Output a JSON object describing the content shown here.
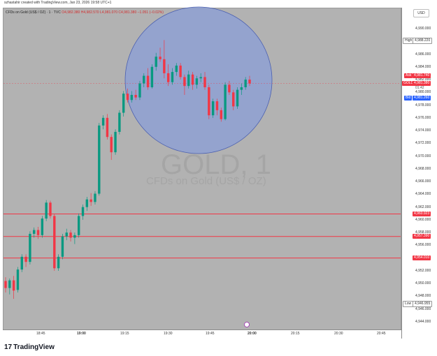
{
  "header": {
    "credit": "szhastahir created with TradingView.com, Jan 23, 2026 19:58 UTC+1"
  },
  "symbol": {
    "name": "CFDs on Gold (US$ / OZ) · 1 · TVC",
    "ohlc": "O4,982.380 H4,982.570 L4,981.070 C4,981.380 −1.051 (−0.02%)"
  },
  "currency": "USD",
  "watermark": {
    "ticker": "GOLD, 1",
    "description": "CFDs on Gold (US$ / OZ)"
  },
  "price_ticks": [
    "4,990.000",
    "4,988.000",
    "4,986.000",
    "4,984.000",
    "4,982.000",
    "4,980.000",
    "4,978.000",
    "4,976.000",
    "4,974.000",
    "4,972.000",
    "4,970.000",
    "4,968.000",
    "4,966.000",
    "4,964.000",
    "4,962.000",
    "4,960.000",
    "4,958.000",
    "4,956.000",
    "4,954.000",
    "4,952.000",
    "4,950.000",
    "4,948.000",
    "4,946.000",
    "4,944.000"
  ],
  "time_ticks": [
    "18:45",
    "19:00",
    "19:15",
    "19:30",
    "19:45",
    "20:00",
    "20:15",
    "20:30",
    "20:45"
  ],
  "tags": {
    "high": {
      "label": "High",
      "value": "4,988.220"
    },
    "low": {
      "label": "Low",
      "value": "4,946.955"
    },
    "ask": {
      "label": "Ask",
      "value": "4,981.740"
    },
    "gold": {
      "label": "GOLD",
      "value": "4,981.380",
      "sub": "01:42"
    },
    "bid": {
      "label": "Bid",
      "value": "4,981.260"
    },
    "line1": {
      "value": "4,960.923"
    },
    "line2": {
      "value": "4,957.390"
    },
    "line3": {
      "value": "4,954.010"
    }
  },
  "colors": {
    "up": "#089981",
    "down": "#f23645",
    "hline": "#f23645",
    "circle_fill": "#8c9fd6",
    "circle_stroke": "#4a5fb0",
    "bid": "#2962ff"
  },
  "chart_data": {
    "type": "candlestick",
    "ylim": [
      4943.0,
      4993.2
    ],
    "horizontal_lines": [
      4960.923,
      4957.39,
      4954.01
    ],
    "candles": [
      {
        "o": 4950.4,
        "h": 4951.0,
        "l": 4948.6,
        "c": 4949.3
      },
      {
        "o": 4949.3,
        "h": 4950.8,
        "l": 4948.3,
        "c": 4950.5
      },
      {
        "o": 4950.5,
        "h": 4951.2,
        "l": 4947.6,
        "c": 4948.9
      },
      {
        "o": 4949.0,
        "h": 4952.6,
        "l": 4948.6,
        "c": 4952.2
      },
      {
        "o": 4952.2,
        "h": 4954.6,
        "l": 4951.8,
        "c": 4954.2
      },
      {
        "o": 4954.2,
        "h": 4954.6,
        "l": 4952.6,
        "c": 4953.4
      },
      {
        "o": 4953.4,
        "h": 4958.2,
        "l": 4953.0,
        "c": 4957.8
      },
      {
        "o": 4957.8,
        "h": 4958.8,
        "l": 4957.2,
        "c": 4958.4
      },
      {
        "o": 4958.4,
        "h": 4958.9,
        "l": 4957.0,
        "c": 4957.6
      },
      {
        "o": 4957.6,
        "h": 4960.6,
        "l": 4957.2,
        "c": 4960.2
      },
      {
        "o": 4960.2,
        "h": 4963.1,
        "l": 4959.8,
        "c": 4962.7
      },
      {
        "o": 4962.7,
        "h": 4963.0,
        "l": 4960.2,
        "c": 4960.6
      },
      {
        "o": 4960.6,
        "h": 4960.9,
        "l": 4952.0,
        "c": 4952.4
      },
      {
        "o": 4952.4,
        "h": 4954.6,
        "l": 4952.0,
        "c": 4954.2
      },
      {
        "o": 4954.2,
        "h": 4957.8,
        "l": 4953.8,
        "c": 4957.4
      },
      {
        "o": 4957.4,
        "h": 4958.6,
        "l": 4956.8,
        "c": 4958.0
      },
      {
        "o": 4958.0,
        "h": 4958.4,
        "l": 4956.6,
        "c": 4957.2
      },
      {
        "o": 4957.2,
        "h": 4958.0,
        "l": 4956.2,
        "c": 4957.6
      },
      {
        "o": 4957.6,
        "h": 4961.0,
        "l": 4957.2,
        "c": 4960.6
      },
      {
        "o": 4960.6,
        "h": 4962.4,
        "l": 4960.0,
        "c": 4962.0
      },
      {
        "o": 4962.0,
        "h": 4963.6,
        "l": 4961.4,
        "c": 4963.2
      },
      {
        "o": 4963.2,
        "h": 4964.2,
        "l": 4962.2,
        "c": 4962.8
      },
      {
        "o": 4962.8,
        "h": 4964.5,
        "l": 4962.4,
        "c": 4964.1
      },
      {
        "o": 4964.1,
        "h": 4975.2,
        "l": 4963.8,
        "c": 4974.8
      },
      {
        "o": 4974.8,
        "h": 4976.4,
        "l": 4974.2,
        "c": 4976.0
      },
      {
        "o": 4976.0,
        "h": 4976.6,
        "l": 4972.6,
        "c": 4973.0
      },
      {
        "o": 4973.0,
        "h": 4973.4,
        "l": 4969.4,
        "c": 4970.6
      },
      {
        "o": 4970.6,
        "h": 4974.2,
        "l": 4970.2,
        "c": 4973.8
      },
      {
        "o": 4973.8,
        "h": 4977.2,
        "l": 4973.4,
        "c": 4976.8
      },
      {
        "o": 4976.8,
        "h": 4980.2,
        "l": 4976.2,
        "c": 4979.8
      },
      {
        "o": 4979.8,
        "h": 4980.6,
        "l": 4978.4,
        "c": 4978.8
      },
      {
        "o": 4978.8,
        "h": 4980.2,
        "l": 4978.4,
        "c": 4979.6
      },
      {
        "o": 4979.6,
        "h": 4980.4,
        "l": 4978.8,
        "c": 4979.2
      },
      {
        "o": 4979.2,
        "h": 4981.8,
        "l": 4978.8,
        "c": 4981.4
      },
      {
        "o": 4981.4,
        "h": 4983.0,
        "l": 4980.8,
        "c": 4982.6
      },
      {
        "o": 4982.6,
        "h": 4983.8,
        "l": 4980.4,
        "c": 4980.8
      },
      {
        "o": 4980.8,
        "h": 4984.4,
        "l": 4980.6,
        "c": 4984.0
      },
      {
        "o": 4984.0,
        "h": 4986.2,
        "l": 4983.4,
        "c": 4985.6
      },
      {
        "o": 4985.6,
        "h": 4987.0,
        "l": 4984.8,
        "c": 4985.2
      },
      {
        "o": 4985.2,
        "h": 4988.2,
        "l": 4982.2,
        "c": 4983.0
      },
      {
        "o": 4983.0,
        "h": 4984.4,
        "l": 4981.0,
        "c": 4981.6
      },
      {
        "o": 4981.6,
        "h": 4983.8,
        "l": 4981.2,
        "c": 4983.2
      },
      {
        "o": 4983.2,
        "h": 4984.6,
        "l": 4982.6,
        "c": 4984.2
      },
      {
        "o": 4984.2,
        "h": 4984.6,
        "l": 4982.0,
        "c": 4982.4
      },
      {
        "o": 4982.4,
        "h": 4982.8,
        "l": 4979.6,
        "c": 4981.0
      },
      {
        "o": 4981.0,
        "h": 4983.4,
        "l": 4980.6,
        "c": 4982.8
      },
      {
        "o": 4982.8,
        "h": 4983.2,
        "l": 4980.4,
        "c": 4981.2
      },
      {
        "o": 4981.2,
        "h": 4982.6,
        "l": 4980.6,
        "c": 4982.2
      },
      {
        "o": 4982.2,
        "h": 4983.0,
        "l": 4981.6,
        "c": 4982.4
      },
      {
        "o": 4982.4,
        "h": 4983.2,
        "l": 4980.4,
        "c": 4980.8
      },
      {
        "o": 4980.8,
        "h": 4981.2,
        "l": 4975.8,
        "c": 4976.4
      },
      {
        "o": 4976.4,
        "h": 4979.0,
        "l": 4976.0,
        "c": 4978.6
      },
      {
        "o": 4978.6,
        "h": 4979.0,
        "l": 4976.4,
        "c": 4977.2
      },
      {
        "o": 4977.2,
        "h": 4977.6,
        "l": 4975.4,
        "c": 4975.8
      },
      {
        "o": 4975.8,
        "h": 4981.6,
        "l": 4975.6,
        "c": 4981.2
      },
      {
        "o": 4981.2,
        "h": 4981.8,
        "l": 4979.6,
        "c": 4980.0
      },
      {
        "o": 4980.0,
        "h": 4980.4,
        "l": 4977.2,
        "c": 4977.8
      },
      {
        "o": 4977.8,
        "h": 4980.8,
        "l": 4977.4,
        "c": 4980.4
      },
      {
        "o": 4980.4,
        "h": 4981.4,
        "l": 4979.6,
        "c": 4980.8
      },
      {
        "o": 4980.8,
        "h": 4982.4,
        "l": 4980.4,
        "c": 4982.0
      },
      {
        "o": 4982.0,
        "h": 4982.6,
        "l": 4981.0,
        "c": 4981.4
      }
    ]
  }
}
